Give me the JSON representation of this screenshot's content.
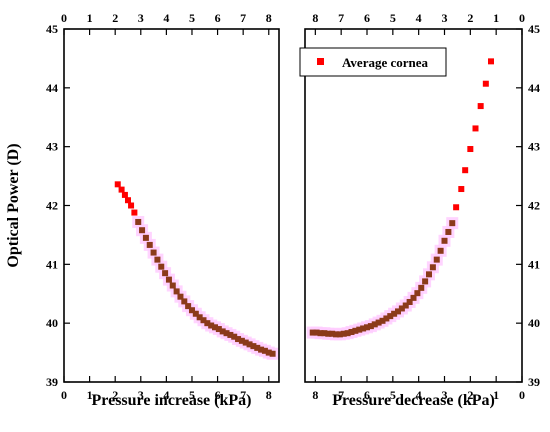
{
  "chart_data": {
    "type": "scatter",
    "ylabel": "Optical Power (D)",
    "ylim": [
      39,
      45
    ],
    "yticks": [
      39,
      40,
      41,
      42,
      43,
      44,
      45
    ],
    "legend": {
      "label": "Average cornea",
      "placement": "top-right",
      "color": "#ff0000"
    },
    "colors": {
      "marker": "#ff0000",
      "overlap": "#8b3a1a",
      "halo": "#ffccff"
    },
    "panels": [
      {
        "name": "increase",
        "xlabel": "Pressure increase (kPa)",
        "xlim": [
          0,
          8.4
        ],
        "xticks": [
          0,
          1,
          2,
          3,
          4,
          5,
          6,
          7,
          8
        ],
        "reversed": false,
        "points": [
          [
            2.1,
            42.36
          ],
          [
            2.25,
            42.27
          ],
          [
            2.38,
            42.18
          ],
          [
            2.5,
            42.09
          ],
          [
            2.62,
            42.0
          ],
          [
            2.75,
            41.88
          ],
          [
            2.9,
            41.72
          ],
          [
            3.05,
            41.58
          ],
          [
            3.2,
            41.45
          ],
          [
            3.35,
            41.33
          ],
          [
            3.5,
            41.2
          ],
          [
            3.65,
            41.08
          ],
          [
            3.8,
            40.96
          ],
          [
            3.95,
            40.85
          ],
          [
            4.1,
            40.74
          ],
          [
            4.25,
            40.64
          ],
          [
            4.4,
            40.54
          ],
          [
            4.55,
            40.45
          ],
          [
            4.7,
            40.37
          ],
          [
            4.85,
            40.29
          ],
          [
            5.0,
            40.22
          ],
          [
            5.15,
            40.16
          ],
          [
            5.3,
            40.1
          ],
          [
            5.45,
            40.05
          ],
          [
            5.6,
            40.0
          ],
          [
            5.75,
            39.96
          ],
          [
            5.9,
            39.93
          ],
          [
            6.05,
            39.9
          ],
          [
            6.2,
            39.86
          ],
          [
            6.35,
            39.83
          ],
          [
            6.5,
            39.8
          ],
          [
            6.65,
            39.77
          ],
          [
            6.8,
            39.73
          ],
          [
            6.95,
            39.7
          ],
          [
            7.1,
            39.67
          ],
          [
            7.25,
            39.64
          ],
          [
            7.4,
            39.61
          ],
          [
            7.55,
            39.58
          ],
          [
            7.7,
            39.55
          ],
          [
            7.85,
            39.53
          ],
          [
            8.0,
            39.5
          ],
          [
            8.15,
            39.48
          ]
        ],
        "overlap_from": 2.9
      },
      {
        "name": "decrease",
        "xlabel": "Pressure decrease (kPa)",
        "xlim": [
          0,
          8.4
        ],
        "xticks": [
          8,
          7,
          6,
          5,
          4,
          3,
          2,
          1,
          0
        ],
        "reversed": true,
        "points": [
          [
            8.1,
            39.84
          ],
          [
            7.95,
            39.84
          ],
          [
            7.8,
            39.83
          ],
          [
            7.65,
            39.83
          ],
          [
            7.5,
            39.82
          ],
          [
            7.35,
            39.82
          ],
          [
            7.2,
            39.81
          ],
          [
            7.05,
            39.81
          ],
          [
            6.9,
            39.82
          ],
          [
            6.75,
            39.83
          ],
          [
            6.6,
            39.85
          ],
          [
            6.45,
            39.87
          ],
          [
            6.3,
            39.89
          ],
          [
            6.15,
            39.91
          ],
          [
            6.0,
            39.93
          ],
          [
            5.85,
            39.95
          ],
          [
            5.7,
            39.98
          ],
          [
            5.55,
            40.01
          ],
          [
            5.4,
            40.04
          ],
          [
            5.25,
            40.08
          ],
          [
            5.1,
            40.12
          ],
          [
            4.95,
            40.16
          ],
          [
            4.8,
            40.2
          ],
          [
            4.65,
            40.25
          ],
          [
            4.5,
            40.3
          ],
          [
            4.35,
            40.36
          ],
          [
            4.2,
            40.43
          ],
          [
            4.05,
            40.51
          ],
          [
            3.9,
            40.6
          ],
          [
            3.75,
            40.71
          ],
          [
            3.6,
            40.83
          ],
          [
            3.45,
            40.95
          ],
          [
            3.3,
            41.08
          ],
          [
            3.15,
            41.23
          ],
          [
            3.0,
            41.4
          ],
          [
            2.85,
            41.55
          ],
          [
            2.7,
            41.7
          ],
          [
            2.55,
            41.97
          ],
          [
            2.35,
            42.28
          ],
          [
            2.2,
            42.6
          ],
          [
            2.0,
            42.96
          ],
          [
            1.8,
            43.31
          ],
          [
            1.6,
            43.69
          ],
          [
            1.4,
            44.07
          ],
          [
            1.2,
            44.45
          ]
        ],
        "overlap_until": 2.7
      }
    ]
  }
}
